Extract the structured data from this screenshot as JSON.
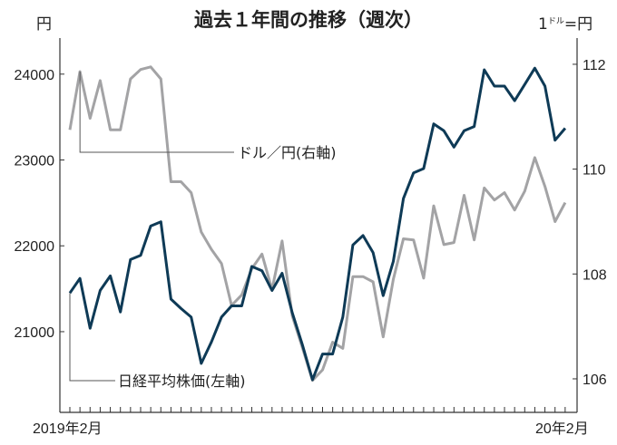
{
  "chart_data": {
    "type": "line",
    "title": "過去１年間の推移（週次）",
    "left_axis_unit": "円",
    "right_axis_unit": {
      "prefix": "1",
      "small": "ドル",
      "suffix": "=円"
    },
    "x_tick_labels": [
      "2019年2月",
      "20年2月"
    ],
    "x_label_first": "2019年2月",
    "x_label_last": "20年2月",
    "left_ylim": [
      20060,
      24420
    ],
    "left_ticks": [
      21000,
      22000,
      23000,
      24000
    ],
    "right_ylim": [
      105.36,
      112.5
    ],
    "right_ticks": [
      106,
      108,
      110,
      112
    ],
    "grid": false,
    "series": [
      {
        "name": "日経平均株価(左軸)",
        "axis": "left",
        "color": "#0e3a56",
        "values": [
          21450,
          21620,
          21040,
          21480,
          21650,
          21230,
          21840,
          21890,
          22230,
          22280,
          21380,
          21270,
          21170,
          20630,
          20880,
          21170,
          21300,
          21300,
          21760,
          21710,
          21480,
          21680,
          21220,
          20850,
          20440,
          20740,
          20740,
          21170,
          22010,
          22120,
          21920,
          21420,
          21820,
          22550,
          22850,
          22900,
          23420,
          23340,
          23150,
          23340,
          23390,
          24050,
          23860,
          23860,
          23690,
          23880,
          24070,
          23860,
          23230,
          23370
        ]
      },
      {
        "name": "ドル／円(右軸)",
        "axis": "right",
        "color": "#a3a3a5",
        "values": [
          110.75,
          111.86,
          110.97,
          111.69,
          110.75,
          110.75,
          111.72,
          111.9,
          111.95,
          111.72,
          109.76,
          109.76,
          109.55,
          108.8,
          108.47,
          108.2,
          107.4,
          107.6,
          108.1,
          108.38,
          107.7,
          108.63,
          107.2,
          106.6,
          105.97,
          106.17,
          106.7,
          106.58,
          107.95,
          107.95,
          107.85,
          106.8,
          107.9,
          108.67,
          108.65,
          107.92,
          109.3,
          108.56,
          108.6,
          109.5,
          108.65,
          109.64,
          109.41,
          109.55,
          109.22,
          109.58,
          110.22,
          109.67,
          109.0,
          109.36
        ]
      }
    ]
  }
}
